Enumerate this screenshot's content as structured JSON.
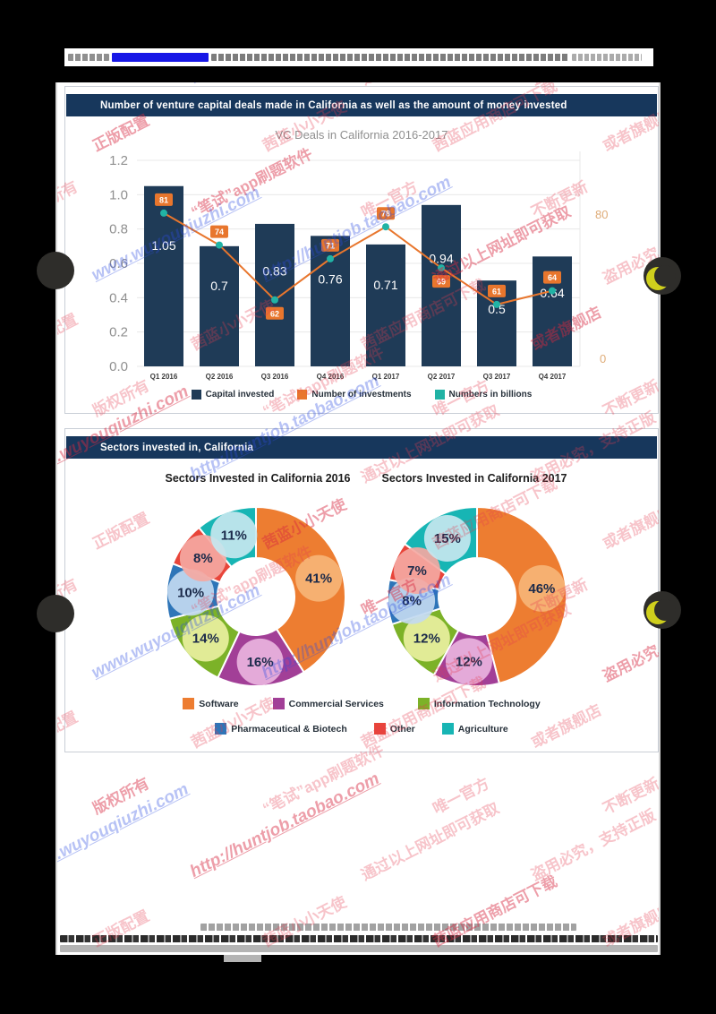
{
  "viewer": {
    "watermarks": [
      {
        "text": "www.wuyouqiuzhi.com",
        "kind": "url"
      },
      {
        "text": "http://huntjob.taobao.com",
        "kind": "url"
      },
      {
        "text": "通过以上网址即可获取",
        "kind": "cn"
      },
      {
        "text": "盗用必究，支持正版",
        "kind": "cn"
      },
      {
        "text": "正版配置",
        "kind": "cn"
      },
      {
        "text": "茜蓝小小天使",
        "kind": "cn"
      },
      {
        "text": "茜蓝应用商店可下载",
        "kind": "cn"
      },
      {
        "text": "或者旗舰店",
        "kind": "cn"
      },
      {
        "text": "版权所有",
        "kind": "cn"
      },
      {
        "text": "“笔试”app刷题软件",
        "kind": "cn"
      },
      {
        "text": "唯一官方",
        "kind": "cn"
      },
      {
        "text": "不断更新",
        "kind": "cn"
      }
    ]
  },
  "vc_chart": {
    "header": "Number of venture capital deals made in California as well as the amount of money invested",
    "title": "VC Deals in California 2016-2017",
    "legend": [
      {
        "label": "Capital invested",
        "color": "#1f3b57"
      },
      {
        "label": "Number of investments",
        "color": "#e8762d"
      },
      {
        "label": "Numbers in billions",
        "color": "#21b3a5"
      }
    ]
  },
  "sectors": {
    "header": "Sectors invested in, California",
    "legend": [
      {
        "label": "Software",
        "color": "#ed7d31",
        "bubble": "#f6b476"
      },
      {
        "label": "Commercial Services",
        "color": "#a23f97",
        "bubble": "#e9b3de"
      },
      {
        "label": "Information Technology",
        "color": "#7cb228",
        "bubble": "#e9f0a0"
      },
      {
        "label": "Pharmaceutical & Biotech",
        "color": "#2e75b8",
        "bubble": "#c2d9f0"
      },
      {
        "label": "Other",
        "color": "#e8453a",
        "bubble": "#f4a8a2"
      },
      {
        "label": "Agriculture",
        "color": "#17b5b4",
        "bubble": "#c5e7ef"
      }
    ]
  },
  "chart_data": [
    {
      "type": "bar",
      "title": "VC Deals in California 2016-2017",
      "categories": [
        "Q1 2016",
        "Q2 2016",
        "Q3 2016",
        "Q4 2016",
        "Q1 2017",
        "Q2 2017",
        "Q3 2017",
        "Q4 2017"
      ],
      "series": [
        {
          "name": "Capital invested",
          "type": "bar",
          "values": [
            1.05,
            0.7,
            0.83,
            0.76,
            0.71,
            0.94,
            0.5,
            0.64
          ],
          "color": "#1f3b57",
          "unit": "billions USD"
        },
        {
          "name": "Number of investments",
          "type": "line",
          "values": [
            81,
            74,
            62,
            71,
            78,
            69,
            61,
            64
          ],
          "color": "#e8762d",
          "marker_color": "#21b3a5",
          "label_side": [
            "above",
            "above",
            "below",
            "above",
            "above",
            "below",
            "above",
            "above"
          ]
        }
      ],
      "left_axis": {
        "min": 0,
        "max": 1.2,
        "tick_labels": [
          "0.0",
          "0.2",
          "0.4",
          "0.6",
          "0.8",
          "1.0",
          "1.2"
        ]
      },
      "right_axis": {
        "visible_labels": [
          "80",
          "0"
        ],
        "color": "#dfac78"
      },
      "grid": true,
      "legend_position": "bottom"
    },
    {
      "type": "pie",
      "title": "Sectors Invested in California 2016",
      "labels": [
        "Software",
        "Commercial Services",
        "Information Technology",
        "Pharmaceutical & Biotech",
        "Other",
        "Agriculture"
      ],
      "values": [
        41,
        16,
        14,
        10,
        8,
        11
      ],
      "unit": "%"
    },
    {
      "type": "pie",
      "title": "Sectors Invested in California 2017",
      "labels": [
        "Software",
        "Commercial Services",
        "Information Technology",
        "Pharmaceutical & Biotech",
        "Other",
        "Agriculture"
      ],
      "values": [
        46,
        12,
        12,
        8,
        7,
        15
      ],
      "unit": "%"
    }
  ]
}
